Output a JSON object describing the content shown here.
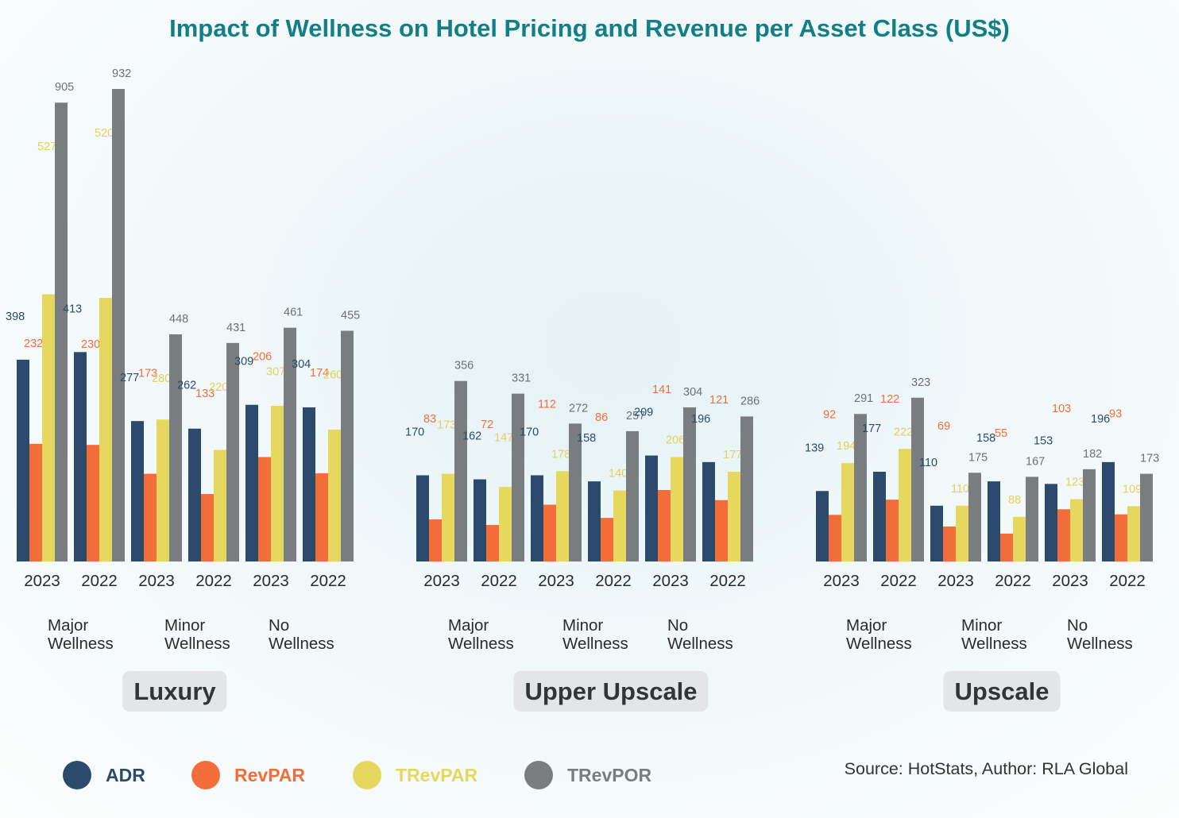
{
  "title": "Impact of Wellness on Hotel Pricing and Revenue per Asset Class (US$)",
  "source": "Source: HotStats, Author: RLA Global",
  "colors": {
    "ADR": "#2c4a6c",
    "RevPAR": "#f36d3b",
    "TRevPAR": "#e6d85e",
    "TRevPOR": "#7a7d7f"
  },
  "legend": [
    {
      "label": "ADR",
      "color": "#2c4a6c",
      "text_color": "#2c4a6c"
    },
    {
      "label": "RevPAR",
      "color": "#f36d3b",
      "text_color": "#f36d3b"
    },
    {
      "label": "TRevPAR",
      "color": "#e6d85e",
      "text_color": "#e6d85e"
    },
    {
      "label": "TRevPOR",
      "color": "#7a7d7f",
      "text_color": "#7a7d7f"
    }
  ],
  "chart_data": {
    "type": "bar",
    "title": "Impact of Wellness on Hotel Pricing and Revenue per Asset Class (US$)",
    "series_names": [
      "ADR",
      "RevPAR",
      "TRevPAR",
      "TRevPOR"
    ],
    "ylim": [
      0,
      1000
    ],
    "grid": false,
    "legend_position": "bottom-left",
    "asset_classes": [
      {
        "name": "Luxury",
        "groups": [
          {
            "label": [
              "Major",
              "Wellness"
            ],
            "years": [
              {
                "year": "2023",
                "values": [
                  398,
                  232,
                  527,
                  905
                ]
              },
              {
                "year": "2022",
                "values": [
                  413,
                  230,
                  520,
                  932
                ]
              }
            ]
          },
          {
            "label": [
              "Minor",
              "Wellness"
            ],
            "years": [
              {
                "year": "2023",
                "values": [
                  277,
                  173,
                  280,
                  448
                ]
              },
              {
                "year": "2022",
                "values": [
                  262,
                  133,
                  220,
                  431
                ]
              }
            ]
          },
          {
            "label": [
              "No",
              "Wellness"
            ],
            "years": [
              {
                "year": "2023",
                "values": [
                  309,
                  206,
                  307,
                  461
                ]
              },
              {
                "year": "2022",
                "values": [
                  304,
                  174,
                  260,
                  455
                ]
              }
            ]
          }
        ]
      },
      {
        "name": "Upper Upscale",
        "groups": [
          {
            "label": [
              "Major",
              "Wellness"
            ],
            "years": [
              {
                "year": "2023",
                "values": [
                  170,
                  83,
                  173,
                  356
                ]
              },
              {
                "year": "2022",
                "values": [
                  162,
                  72,
                  147,
                  331
                ]
              }
            ]
          },
          {
            "label": [
              "Minor",
              "Wellness"
            ],
            "years": [
              {
                "year": "2023",
                "values": [
                  170,
                  112,
                  178,
                  272
                ]
              },
              {
                "year": "2022",
                "values": [
                  158,
                  86,
                  140,
                  257
                ]
              }
            ]
          },
          {
            "label": [
              "No",
              "Wellness"
            ],
            "years": [
              {
                "year": "2023",
                "values": [
                  209,
                  141,
                  206,
                  304
                ]
              },
              {
                "year": "2022",
                "values": [
                  196,
                  121,
                  177,
                  286
                ]
              }
            ]
          }
        ]
      },
      {
        "name": "Upscale",
        "groups": [
          {
            "label": [
              "Major",
              "Wellness"
            ],
            "years": [
              {
                "year": "2023",
                "values": [
                  139,
                  92,
                  194,
                  291
                ]
              },
              {
                "year": "2022",
                "values": [
                  177,
                  122,
                  222,
                  323
                ]
              }
            ]
          },
          {
            "label": [
              "Minor",
              "Wellness"
            ],
            "years": [
              {
                "year": "2023",
                "values": [
                  110,
                  69,
                  110,
                  175
                ]
              },
              {
                "year": "2022",
                "values": [
                  158,
                  55,
                  88,
                  167
                ]
              }
            ]
          },
          {
            "label": [
              "No",
              "Wellness"
            ],
            "years": [
              {
                "year": "2023",
                "values": [
                  153,
                  103,
                  123,
                  182
                ]
              },
              {
                "year": "2022",
                "values": [
                  196,
                  93,
                  109,
                  173
                ]
              }
            ]
          }
        ]
      }
    ]
  }
}
